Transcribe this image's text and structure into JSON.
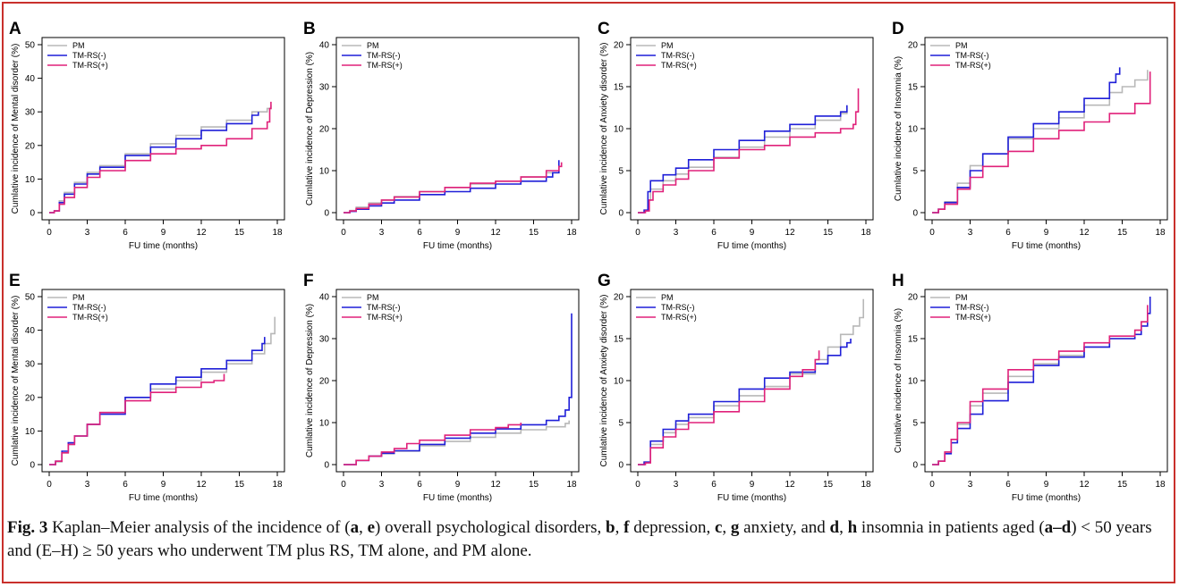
{
  "colors": {
    "PM": "#b8b8b8",
    "TM-RS(-)": "#1f1fd8",
    "TM-RS(+)": "#e0217a",
    "frame": "#c9302c"
  },
  "chart_data": [
    {
      "panel": "A",
      "type": "line",
      "xlabel": "FU time (months)",
      "ylabel": "Cumlative incidence of Mental disorder (%)",
      "xlim": [
        0,
        18
      ],
      "ylim": [
        0,
        50
      ],
      "xticks": [
        0,
        3,
        6,
        9,
        12,
        15,
        18
      ],
      "yticks": [
        0,
        10,
        20,
        30,
        40,
        50
      ],
      "legend": "top-left",
      "series": [
        {
          "name": "PM",
          "x": [
            0,
            0.4,
            0.8,
            1.2,
            2,
            3,
            4,
            6,
            8,
            10,
            12,
            14,
            16,
            17.2,
            17.5
          ],
          "y": [
            0,
            0.5,
            3.5,
            6,
            9,
            12,
            14,
            17.5,
            20.5,
            23,
            25.5,
            27.5,
            30,
            31,
            32
          ]
        },
        {
          "name": "TM-RS(-)",
          "x": [
            0,
            0.4,
            0.8,
            1.2,
            2,
            3,
            4,
            6,
            8,
            10,
            12,
            14,
            16,
            16.5
          ],
          "y": [
            0,
            0.5,
            3,
            5.5,
            8.5,
            11.5,
            13.5,
            17,
            19.5,
            22,
            24.5,
            26.5,
            29,
            30
          ]
        },
        {
          "name": "TM-RS(+)",
          "x": [
            0,
            0.4,
            0.8,
            1.2,
            2,
            3,
            4,
            6,
            8,
            10,
            12,
            14,
            16,
            17.2,
            17.4,
            17.5
          ],
          "y": [
            0,
            0.5,
            2.5,
            4.5,
            7.5,
            10.5,
            12.5,
            15.5,
            17.5,
            19,
            20,
            22,
            25,
            27,
            31,
            33
          ]
        }
      ]
    },
    {
      "panel": "B",
      "type": "line",
      "xlabel": "FU time (months)",
      "ylabel": "Cumlative incidence of Depression (%)",
      "xlim": [
        0,
        18
      ],
      "ylim": [
        0,
        40
      ],
      "xticks": [
        0,
        3,
        6,
        9,
        12,
        15,
        18
      ],
      "yticks": [
        0,
        10,
        20,
        30,
        40
      ],
      "legend": "top-left",
      "series": [
        {
          "name": "PM",
          "x": [
            0,
            0.5,
            1,
            2,
            3,
            4,
            6,
            8,
            10,
            12,
            14,
            16,
            17
          ],
          "y": [
            0,
            0.5,
            1.3,
            2.3,
            3,
            3.8,
            5,
            6,
            6.8,
            7.5,
            8.5,
            9.5,
            11
          ]
        },
        {
          "name": "TM-RS(-)",
          "x": [
            0,
            0.5,
            1,
            2,
            3,
            4,
            6,
            8,
            10,
            12,
            14,
            16,
            16.5,
            17
          ],
          "y": [
            0,
            0.3,
            0.8,
            1.6,
            2.3,
            3,
            4.3,
            5,
            5.8,
            6.8,
            7.5,
            8.5,
            9.5,
            12.5
          ]
        },
        {
          "name": "TM-RS(+)",
          "x": [
            0,
            0.5,
            1,
            2,
            3,
            4,
            6,
            8,
            10,
            12,
            14,
            16,
            17,
            17.2
          ],
          "y": [
            0,
            0.4,
            1,
            2,
            3,
            3.7,
            5,
            6,
            7,
            7.5,
            8.5,
            10,
            11,
            12
          ]
        }
      ]
    },
    {
      "panel": "C",
      "type": "line",
      "xlabel": "FU time (months)",
      "ylabel": "Cumlative incidence of Anxiety disorder (%)",
      "xlim": [
        0,
        18
      ],
      "ylim": [
        0,
        20
      ],
      "xticks": [
        0,
        3,
        6,
        9,
        12,
        15,
        18
      ],
      "yticks": [
        0,
        5,
        10,
        15,
        20
      ],
      "legend": "top-left",
      "series": [
        {
          "name": "PM",
          "x": [
            0,
            0.5,
            0.8,
            1,
            2,
            3,
            4,
            6,
            8,
            10,
            12,
            14,
            16,
            16.5
          ],
          "y": [
            0,
            0.2,
            1.5,
            2.8,
            3.8,
            4.6,
            5.4,
            6.6,
            7.8,
            9,
            10,
            11,
            11.8,
            12.5
          ]
        },
        {
          "name": "TM-RS(-)",
          "x": [
            0,
            0.5,
            0.8,
            1,
            2,
            3,
            4,
            6,
            8,
            10,
            12,
            14,
            16,
            16.5
          ],
          "y": [
            0,
            0.3,
            2.5,
            3.8,
            4.5,
            5.3,
            6.3,
            7.5,
            8.6,
            9.7,
            10.5,
            11.5,
            12,
            12.8
          ]
        },
        {
          "name": "TM-RS(+)",
          "x": [
            0,
            0.6,
            0.9,
            1.2,
            2,
            3,
            4,
            6,
            8,
            10,
            12,
            14,
            16,
            17,
            17.2,
            17.4
          ],
          "y": [
            0,
            0.2,
            1.5,
            2.5,
            3.3,
            4,
            5,
            6.5,
            7.5,
            8,
            9,
            9.5,
            10,
            10.5,
            12,
            14.8
          ]
        }
      ]
    },
    {
      "panel": "D",
      "type": "line",
      "xlabel": "FU time (months)",
      "ylabel": "Cumlative incidence of Insomnia (%)",
      "xlim": [
        0,
        18
      ],
      "ylim": [
        0,
        20
      ],
      "xticks": [
        0,
        3,
        6,
        9,
        12,
        15,
        18
      ],
      "yticks": [
        0,
        5,
        10,
        15,
        20
      ],
      "legend": "top-left",
      "series": [
        {
          "name": "PM",
          "x": [
            0,
            0.5,
            1,
            2,
            3,
            4,
            6,
            8,
            10,
            12,
            14,
            15,
            16,
            17
          ],
          "y": [
            0,
            0.4,
            1.3,
            3.5,
            5.6,
            7,
            8.8,
            10,
            11.3,
            12.8,
            14.3,
            15,
            15.8,
            17
          ]
        },
        {
          "name": "TM-RS(-)",
          "x": [
            0,
            0.5,
            1,
            2,
            3,
            4,
            6,
            8,
            10,
            12,
            14,
            14.5,
            14.8
          ],
          "y": [
            0,
            0.4,
            1.2,
            3,
            5,
            7,
            9,
            10.6,
            12,
            13.6,
            15.5,
            16.5,
            17.3
          ]
        },
        {
          "name": "TM-RS(+)",
          "x": [
            0,
            0.5,
            1,
            2,
            3,
            4,
            6,
            8,
            10,
            12,
            14,
            16,
            17,
            17.2
          ],
          "y": [
            0,
            0.4,
            1,
            2.8,
            4.2,
            5.5,
            7.3,
            8.8,
            9.8,
            10.8,
            11.8,
            13,
            13,
            16.8
          ]
        }
      ]
    },
    {
      "panel": "E",
      "type": "line",
      "xlabel": "FU time (months)",
      "ylabel": "Cumlative incidence of Mental disorder (%)",
      "xlim": [
        0,
        18
      ],
      "ylim": [
        0,
        50
      ],
      "xticks": [
        0,
        3,
        6,
        9,
        12,
        15,
        18
      ],
      "yticks": [
        0,
        10,
        20,
        30,
        40,
        50
      ],
      "legend": "top-left",
      "series": [
        {
          "name": "PM",
          "x": [
            0,
            0.5,
            1,
            1.5,
            2,
            3,
            4,
            6,
            8,
            10,
            12,
            14,
            16,
            17,
            17.5,
            17.8
          ],
          "y": [
            0,
            0.8,
            3.5,
            6,
            8.5,
            12,
            15.5,
            20,
            22.5,
            25,
            27.5,
            30,
            33,
            36,
            39,
            44
          ]
        },
        {
          "name": "TM-RS(-)",
          "x": [
            0,
            0.5,
            1,
            1.5,
            2,
            3,
            4,
            6,
            8,
            10,
            12,
            14,
            16,
            16.8,
            17
          ],
          "y": [
            0,
            1,
            4,
            6.5,
            8.5,
            12,
            15,
            20,
            24,
            26,
            28.5,
            31,
            34,
            36,
            38
          ]
        },
        {
          "name": "TM-RS(+)",
          "x": [
            0,
            0.5,
            1,
            1.5,
            2,
            3,
            4,
            6,
            8,
            10,
            12,
            13,
            13.8
          ],
          "y": [
            0,
            1,
            3.5,
            6,
            8.5,
            12,
            15.5,
            19,
            21.5,
            23,
            24.5,
            25,
            27
          ]
        }
      ]
    },
    {
      "panel": "F",
      "type": "line",
      "xlabel": "FU time (months)",
      "ylabel": "Cumlative incidence of Depression (%)",
      "xlim": [
        0,
        18
      ],
      "ylim": [
        0,
        40
      ],
      "xticks": [
        0,
        3,
        6,
        9,
        12,
        15,
        18
      ],
      "yticks": [
        0,
        10,
        20,
        30,
        40
      ],
      "legend": "top-left",
      "series": [
        {
          "name": "PM",
          "x": [
            0,
            1,
            2,
            3,
            4,
            6,
            8,
            10,
            12,
            14,
            16,
            17.5,
            17.8
          ],
          "y": [
            0,
            1,
            2,
            2.6,
            3.2,
            4.5,
            5.5,
            6.5,
            7.5,
            8.3,
            9,
            9.8,
            10.5
          ]
        },
        {
          "name": "TM-RS(-)",
          "x": [
            0,
            1,
            2,
            3,
            4,
            6,
            8,
            10,
            12,
            14,
            16,
            17,
            17.5,
            17.8,
            18
          ],
          "y": [
            0,
            1,
            2,
            2.7,
            3.3,
            4.8,
            6.3,
            7.5,
            8.5,
            9.5,
            10.5,
            11.5,
            13,
            16,
            36
          ]
        },
        {
          "name": "TM-RS(+)",
          "x": [
            0,
            1,
            2,
            3,
            4,
            5,
            6,
            8,
            10,
            12,
            13,
            14
          ],
          "y": [
            0,
            1,
            2,
            3,
            3.8,
            5,
            5.8,
            7,
            8.3,
            8.8,
            9.5,
            10
          ]
        }
      ]
    },
    {
      "panel": "G",
      "type": "line",
      "xlabel": "FU time (months)",
      "ylabel": "Cumlative incidence of Anxiety disorder (%)",
      "xlim": [
        0,
        18
      ],
      "ylim": [
        0,
        20
      ],
      "xticks": [
        0,
        3,
        6,
        9,
        12,
        15,
        18
      ],
      "yticks": [
        0,
        5,
        10,
        15,
        20
      ],
      "legend": "top-left",
      "series": [
        {
          "name": "PM",
          "x": [
            0,
            0.5,
            1,
            2,
            3,
            4,
            6,
            8,
            10,
            12,
            14,
            15,
            16,
            17,
            17.5,
            17.8
          ],
          "y": [
            0,
            0.3,
            2.4,
            3.8,
            4.8,
            5.6,
            7,
            8.2,
            9.3,
            10.8,
            12.5,
            14,
            15.5,
            16.5,
            17.5,
            19.7
          ]
        },
        {
          "name": "TM-RS(-)",
          "x": [
            0,
            0.5,
            1,
            2,
            3,
            4,
            6,
            8,
            10,
            12,
            14,
            15,
            16,
            16.5,
            16.8
          ],
          "y": [
            0,
            0.3,
            2.8,
            4.2,
            5.2,
            6,
            7.5,
            9,
            10.3,
            11,
            12,
            13,
            14,
            14.5,
            15
          ]
        },
        {
          "name": "TM-RS(+)",
          "x": [
            0,
            0.6,
            1,
            2,
            3,
            4,
            6,
            8,
            10,
            12,
            13,
            14,
            14.3
          ],
          "y": [
            0,
            0.2,
            2,
            3.3,
            4.2,
            5,
            6.3,
            7.5,
            9,
            10.5,
            11.3,
            12.5,
            13.6
          ]
        }
      ]
    },
    {
      "panel": "H",
      "type": "line",
      "xlabel": "FU time (months)",
      "ylabel": "Cumlative incidence of Insomnia (%)",
      "xlim": [
        0,
        18
      ],
      "ylim": [
        0,
        20
      ],
      "xticks": [
        0,
        3,
        6,
        9,
        12,
        15,
        18
      ],
      "yticks": [
        0,
        5,
        10,
        15,
        20
      ],
      "legend": "top-left",
      "series": [
        {
          "name": "PM",
          "x": [
            0,
            0.5,
            1,
            1.5,
            2,
            3,
            4,
            6,
            8,
            10,
            12,
            14,
            16,
            16.5,
            17
          ],
          "y": [
            0,
            0.4,
            1.5,
            3,
            4.8,
            7,
            8.5,
            10.5,
            12,
            13,
            14,
            15,
            16,
            17,
            18
          ]
        },
        {
          "name": "TM-RS(-)",
          "x": [
            0,
            0.5,
            1,
            1.5,
            2,
            3,
            4,
            6,
            8,
            10,
            12,
            14,
            16,
            16.5,
            17,
            17.2
          ],
          "y": [
            0,
            0.4,
            1.3,
            2.6,
            4.3,
            6,
            7.6,
            9.8,
            11.8,
            12.8,
            14,
            15,
            15.5,
            16.5,
            18,
            20
          ]
        },
        {
          "name": "TM-RS(+)",
          "x": [
            0,
            0.5,
            1,
            1.5,
            2,
            3,
            4,
            6,
            8,
            10,
            12,
            14,
            16,
            16.5,
            17
          ],
          "y": [
            0,
            0.4,
            1.5,
            3,
            5,
            7.5,
            9,
            11.3,
            12.5,
            13.5,
            14.5,
            15.3,
            16,
            17,
            19
          ]
        }
      ]
    }
  ],
  "caption": {
    "fig_label": "Fig. 3",
    "segments": [
      {
        "t": "  Kaplan–Meier analysis of the incidence of ("
      },
      {
        "t": "a",
        "b": true
      },
      {
        "t": ", "
      },
      {
        "t": "e",
        "b": true
      },
      {
        "t": ") overall psychological disorders, "
      },
      {
        "t": "b",
        "b": true
      },
      {
        "t": ", "
      },
      {
        "t": "f",
        "b": true
      },
      {
        "t": " depression, "
      },
      {
        "t": "c",
        "b": true
      },
      {
        "t": ", "
      },
      {
        "t": "g",
        "b": true
      },
      {
        "t": " anxiety, and "
      },
      {
        "t": "d",
        "b": true
      },
      {
        "t": ", "
      },
      {
        "t": "h",
        "b": true
      },
      {
        "t": " insomnia in patients aged ("
      },
      {
        "t": "a–d",
        "b": true
      },
      {
        "t": ") < 50 years and (E–H) ≥ 50 years who underwent TM plus RS, TM alone, and PM alone."
      }
    ]
  }
}
